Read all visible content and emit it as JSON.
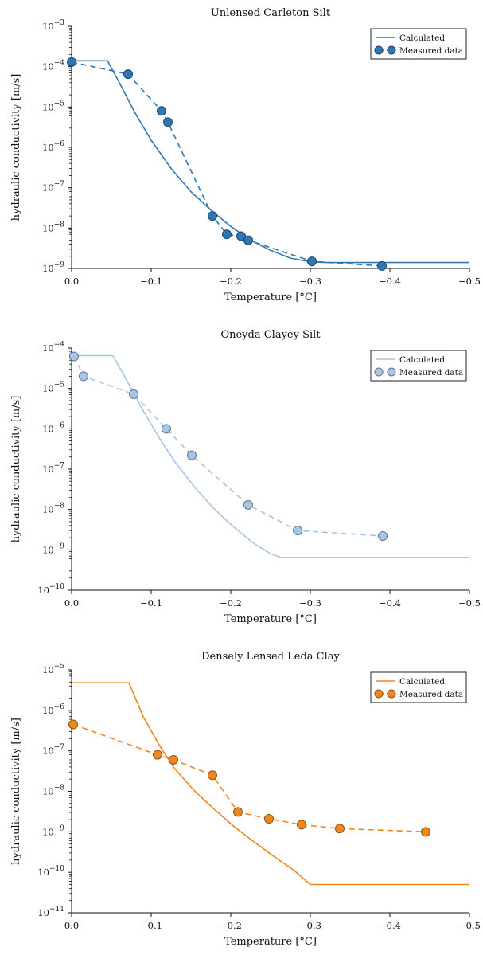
{
  "chart_data": [
    {
      "type": "line",
      "title": "Unlensed Carleton Silt",
      "xlabel": "Temperature [°C]",
      "ylabel": "hydraulic conductivity [m/s]",
      "xlim": [
        0,
        -0.5
      ],
      "ylim_exp": [
        -9,
        -3
      ],
      "y_scale": "log",
      "x_ticks": [
        "0.0",
        "−0.1",
        "−0.2",
        "−0.3",
        "−0.4",
        "−0.5"
      ],
      "y_ticks": [
        [
          "10",
          "−9"
        ],
        [
          "10",
          "−8"
        ],
        [
          "10",
          "−7"
        ],
        [
          "10",
          "−6"
        ],
        [
          "10",
          "−5"
        ],
        [
          "10",
          "−4"
        ],
        [
          "10",
          "−3"
        ]
      ],
      "color": "#2e77b5",
      "legend": [
        "Calculated",
        "Measured data"
      ],
      "legend_position": "top-right",
      "series": [
        {
          "name": "Calculated",
          "style": "solid",
          "x": [
            0,
            -0.045,
            -0.06,
            -0.08,
            -0.1,
            -0.125,
            -0.15,
            -0.175,
            -0.2,
            -0.225,
            -0.25,
            -0.275,
            -0.3,
            -0.32,
            -0.5
          ],
          "y": [
            0.00014,
            0.00014,
            4e-05,
            7e-06,
            1.5e-06,
            3e-07,
            8e-08,
            2.8e-08,
            1.1e-08,
            5e-09,
            2.8e-09,
            1.8e-09,
            1.45e-09,
            1.4e-09,
            1.4e-09
          ]
        },
        {
          "name": "Measured data",
          "style": "dashed-markers",
          "x": [
            0.0,
            -0.071,
            -0.113,
            -0.121,
            -0.177,
            -0.195,
            -0.213,
            -0.222,
            -0.302,
            -0.39
          ],
          "y": [
            0.00013,
            6.5e-05,
            8e-06,
            4.2e-06,
            2e-08,
            7e-09,
            6.3e-09,
            5e-09,
            1.5e-09,
            1.15e-09
          ]
        }
      ]
    },
    {
      "type": "line",
      "title": "Oneyda Clayey Silt",
      "xlabel": "Temperature [°C]",
      "ylabel": "hydraulic conductivity [m/s]",
      "xlim": [
        0,
        -0.5
      ],
      "ylim_exp": [
        -10,
        -4
      ],
      "y_scale": "log",
      "x_ticks": [
        "0.0",
        "−0.1",
        "−0.2",
        "−0.3",
        "−0.4",
        "−0.5"
      ],
      "y_ticks": [
        [
          "10",
          "−10"
        ],
        [
          "10",
          "−9"
        ],
        [
          "10",
          "−8"
        ],
        [
          "10",
          "−7"
        ],
        [
          "10",
          "−6"
        ],
        [
          "10",
          "−5"
        ],
        [
          "10",
          "−4"
        ]
      ],
      "color": "#a8c4e6",
      "legend": [
        "Calculated",
        "Measured data"
      ],
      "legend_position": "top-right",
      "series": [
        {
          "name": "Calculated",
          "style": "solid",
          "x": [
            0,
            -0.052,
            -0.07,
            -0.09,
            -0.11,
            -0.13,
            -0.155,
            -0.18,
            -0.205,
            -0.23,
            -0.25,
            -0.263,
            -0.5
          ],
          "y": [
            6.5e-05,
            6.5e-05,
            1.5e-05,
            2.8e-06,
            6e-07,
            1.5e-07,
            3.5e-08,
            1e-08,
            3.5e-09,
            1.4e-09,
            8e-10,
            6.5e-10,
            6.5e-10
          ]
        },
        {
          "name": "Measured data",
          "style": "dashed-markers",
          "x": [
            -0.003,
            -0.015,
            -0.078,
            -0.119,
            -0.151,
            -0.222,
            -0.284,
            -0.391
          ],
          "y": [
            6.2e-05,
            2e-05,
            7.2e-06,
            1e-06,
            2.2e-07,
            1.3e-08,
            3e-09,
            2.2e-09
          ]
        }
      ]
    },
    {
      "type": "line",
      "title": "Densely Lensed Leda Clay",
      "xlabel": "Temperature [°C]",
      "ylabel": "hydraulic conductivity [m/s]",
      "xlim": [
        0,
        -0.5
      ],
      "ylim_exp": [
        -11,
        -5
      ],
      "y_scale": "log",
      "x_ticks": [
        "0.0",
        "−0.1",
        "−0.2",
        "−0.3",
        "−0.4",
        "−0.5"
      ],
      "y_ticks": [
        [
          "10",
          "−11"
        ],
        [
          "10",
          "−10"
        ],
        [
          "10",
          "−9"
        ],
        [
          "10",
          "−8"
        ],
        [
          "10",
          "−7"
        ],
        [
          "10",
          "−6"
        ],
        [
          "10",
          "−5"
        ]
      ],
      "color": "#f0861e",
      "legend": [
        "Calculated",
        "Measured data"
      ],
      "legend_position": "top-right",
      "series": [
        {
          "name": "Calculated",
          "style": "solid",
          "x": [
            0,
            -0.072,
            -0.09,
            -0.11,
            -0.13,
            -0.155,
            -0.18,
            -0.205,
            -0.23,
            -0.255,
            -0.28,
            -0.3,
            -0.5
          ],
          "y": [
            4.8e-06,
            4.8e-06,
            7e-07,
            1.4e-07,
            3.5e-08,
            1e-08,
            3.5e-09,
            1.3e-09,
            5.5e-10,
            2.4e-10,
            1.1e-10,
            5e-11,
            5e-11
          ]
        },
        {
          "name": "Measured data",
          "style": "dashed-markers",
          "x": [
            -0.002,
            -0.108,
            -0.128,
            -0.177,
            -0.209,
            -0.248,
            -0.289,
            -0.337,
            -0.445
          ],
          "y": [
            4.5e-07,
            8e-08,
            6e-08,
            2.5e-08,
            3.1e-09,
            2.1e-09,
            1.5e-09,
            1.2e-09,
            1e-09
          ]
        }
      ]
    }
  ]
}
